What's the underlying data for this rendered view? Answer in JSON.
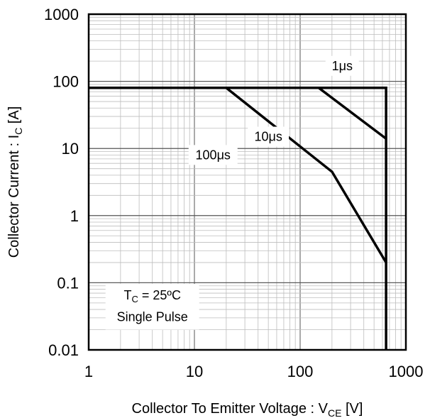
{
  "chart_data": {
    "type": "line",
    "x_scale": "log",
    "y_scale": "log",
    "xlim": [
      1,
      1000
    ],
    "ylim": [
      0.01,
      1000
    ],
    "grid": true,
    "x_ticks": [
      "1",
      "10",
      "100",
      "1000"
    ],
    "y_ticks": [
      "0.01",
      "0.1",
      "1",
      "10",
      "100",
      "1000"
    ],
    "x_tick_values": [
      1,
      10,
      100,
      1000
    ],
    "y_tick_values": [
      0.01,
      0.1,
      1,
      10,
      100,
      1000
    ],
    "xlabel": {
      "main": "Collector To Emitter Voltage : V",
      "sub": "CE",
      "unit": " [V]"
    },
    "ylabel": {
      "main": "Collector Current : I",
      "sub": "C",
      "unit": " [A]"
    },
    "series": [
      {
        "name": "1μs",
        "x": [
          1,
          650,
          650
        ],
        "y": [
          80,
          80,
          0.01
        ]
      },
      {
        "name": "10μs",
        "x": [
          150,
          650
        ],
        "y": [
          80,
          14
        ]
      },
      {
        "name": "100μs",
        "x": [
          20,
          200,
          650
        ],
        "y": [
          80,
          4.5,
          0.2
        ]
      }
    ],
    "series_label_points": [
      {
        "name": "1μs",
        "x": 250,
        "y": 170
      },
      {
        "name": "10μs",
        "x": 50,
        "y": 15
      },
      {
        "name": "100μs",
        "x": 15,
        "y": 8
      }
    ],
    "annotation": {
      "line1_main": "T",
      "line1_sub": "C",
      "line1_rest": " = 25ºC",
      "line2": "Single Pulse",
      "x": 4,
      "y_line1": 0.065,
      "y_line2": 0.031
    }
  }
}
